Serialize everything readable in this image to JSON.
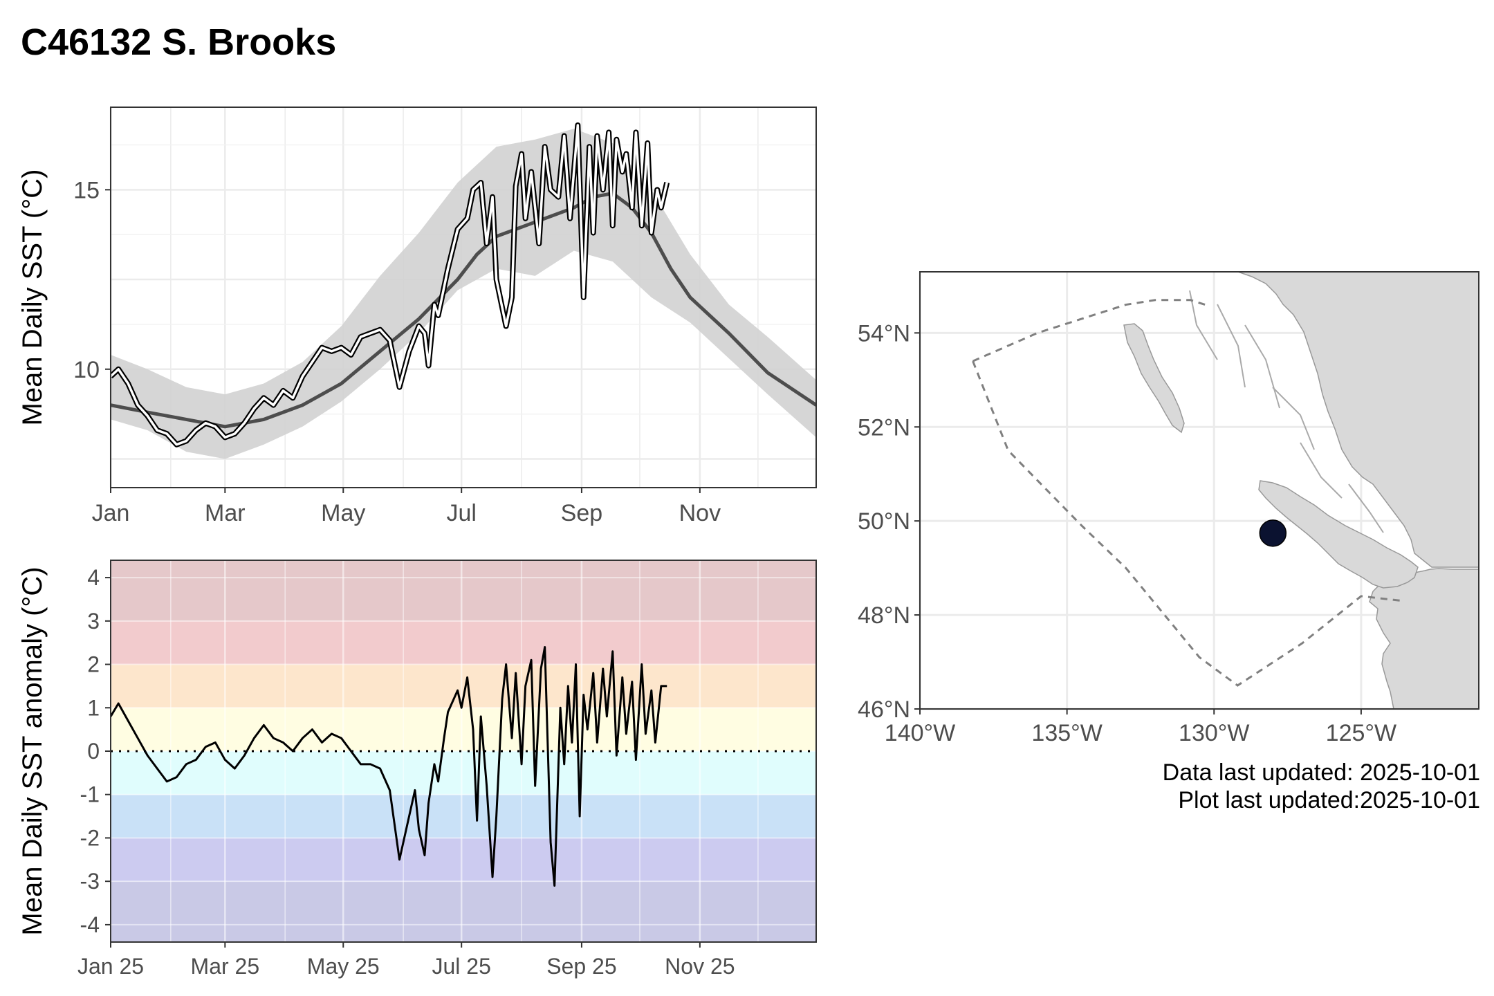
{
  "page": {
    "title": "C46132 S. Brooks",
    "data_updated": "Data last updated: 2025-10-01",
    "plot_updated": "Plot last updated:2025-10-01"
  },
  "colors": {
    "climatology_band": "#d2d2d2",
    "climatology_line": "#4d4d4d",
    "observed_outline": "#000000",
    "observed_inner": "#ffffff",
    "anomaly_line": "#000000",
    "land": "#d9d9d9",
    "station_marker": "#0b1230",
    "boundary": "#808080",
    "anomaly_bands": [
      "#c9c9e6",
      "#cccbf0",
      "#c9e1f7",
      "#e0fdfd",
      "#fffde2",
      "#fde6cc",
      "#f2cbcd",
      "#e5c8ca"
    ]
  },
  "chart_data": [
    {
      "type": "line",
      "ylabel": "Mean Daily SST (°C)",
      "xlabel": "",
      "xticks": [
        "Jan",
        "Mar",
        "May",
        "Jul",
        "Sep",
        "Nov"
      ],
      "yticks": [
        "10",
        "15"
      ],
      "ylim": [
        6.7,
        17.3
      ],
      "xlim_days": [
        1,
        365
      ],
      "grid": true,
      "series": [
        {
          "role": "climatology_range",
          "x_days": [
            1,
            20,
            40,
            60,
            80,
            100,
            120,
            140,
            160,
            180,
            200,
            220,
            240,
            260,
            280,
            300,
            320,
            340,
            365
          ],
          "lower": [
            8.6,
            8.3,
            7.7,
            7.5,
            7.9,
            8.4,
            9.1,
            10.0,
            11.0,
            12.2,
            12.8,
            12.6,
            13.3,
            13.0,
            12.0,
            11.3,
            10.3,
            9.3,
            8.1
          ],
          "upper": [
            10.4,
            10.0,
            9.5,
            9.3,
            9.6,
            10.2,
            11.2,
            12.6,
            13.8,
            15.2,
            16.2,
            16.4,
            16.7,
            16.3,
            15.0,
            13.2,
            11.8,
            10.9,
            9.7
          ]
        },
        {
          "role": "climatology_mean",
          "x_days": [
            1,
            20,
            40,
            60,
            80,
            100,
            120,
            140,
            160,
            180,
            190,
            200,
            210,
            220,
            230,
            240,
            250,
            260,
            270,
            280,
            290,
            300,
            320,
            340,
            365
          ],
          "y": [
            9.0,
            8.8,
            8.6,
            8.4,
            8.6,
            9.0,
            9.6,
            10.5,
            11.4,
            12.5,
            13.2,
            13.7,
            13.9,
            14.1,
            14.3,
            14.5,
            14.8,
            14.9,
            14.5,
            13.8,
            12.8,
            12.0,
            11.0,
            9.9,
            9.0
          ]
        },
        {
          "role": "observed_2025",
          "x_days": [
            1,
            5,
            10,
            15,
            20,
            25,
            30,
            35,
            40,
            45,
            50,
            55,
            60,
            65,
            70,
            75,
            80,
            85,
            90,
            95,
            100,
            105,
            110,
            115,
            120,
            125,
            130,
            135,
            140,
            145,
            150,
            155,
            160,
            163,
            165,
            168,
            170,
            175,
            180,
            185,
            188,
            192,
            195,
            198,
            200,
            205,
            208,
            210,
            213,
            215,
            218,
            222,
            225,
            228,
            232,
            235,
            238,
            242,
            245,
            248,
            250,
            252,
            255,
            258,
            260,
            262,
            265,
            267,
            270,
            272,
            275,
            278,
            280,
            283,
            285,
            288
          ],
          "y": [
            9.8,
            10.0,
            9.6,
            9.0,
            8.7,
            8.3,
            8.2,
            7.9,
            8.0,
            8.3,
            8.5,
            8.4,
            8.1,
            8.2,
            8.5,
            8.9,
            9.2,
            9.0,
            9.4,
            9.2,
            9.8,
            10.2,
            10.6,
            10.5,
            10.6,
            10.4,
            10.9,
            11.0,
            11.1,
            10.8,
            9.5,
            10.5,
            11.2,
            11.0,
            10.1,
            11.8,
            11.5,
            12.8,
            13.9,
            14.2,
            15.0,
            15.2,
            13.5,
            14.8,
            12.5,
            11.2,
            12.0,
            15.1,
            16.0,
            14.2,
            15.5,
            13.5,
            16.2,
            15.0,
            14.8,
            16.5,
            14.2,
            16.8,
            12.0,
            16.2,
            13.8,
            16.5,
            15.0,
            16.6,
            14.0,
            16.4,
            15.5,
            16.0,
            14.5,
            16.6,
            14.0,
            16.3,
            13.8,
            15.0,
            14.5,
            15.2
          ]
        }
      ]
    },
    {
      "type": "line",
      "ylabel": "Mean Daily SST anomaly (°C)",
      "xlabel": "",
      "xticks": [
        "Jan 25",
        "Mar 25",
        "May 25",
        "Jul 25",
        "Sep 25",
        "Nov 25"
      ],
      "yticks": [
        "4",
        "3",
        "2",
        "1",
        "0",
        "-1",
        "-2",
        "-3",
        "-4"
      ],
      "ylim": [
        -4.4,
        4.4
      ],
      "xlim_days": [
        1,
        365
      ],
      "grid": true,
      "series": [
        {
          "role": "anomaly_2025",
          "x_days": [
            1,
            5,
            10,
            15,
            20,
            25,
            30,
            35,
            40,
            45,
            50,
            55,
            60,
            65,
            70,
            75,
            80,
            85,
            90,
            95,
            100,
            105,
            110,
            115,
            120,
            125,
            130,
            135,
            140,
            145,
            150,
            155,
            158,
            160,
            163,
            165,
            168,
            170,
            173,
            175,
            180,
            182,
            185,
            188,
            190,
            192,
            195,
            198,
            200,
            203,
            205,
            208,
            210,
            213,
            215,
            218,
            220,
            223,
            225,
            228,
            230,
            233,
            235,
            237,
            239,
            241,
            243,
            245,
            247,
            250,
            252,
            255,
            257,
            260,
            262,
            265,
            267,
            270,
            272,
            275,
            277,
            280,
            282,
            285,
            288
          ],
          "y": [
            0.8,
            1.1,
            0.7,
            0.3,
            -0.1,
            -0.4,
            -0.7,
            -0.6,
            -0.3,
            -0.2,
            0.1,
            0.2,
            -0.2,
            -0.4,
            -0.1,
            0.3,
            0.6,
            0.3,
            0.2,
            0.0,
            0.3,
            0.5,
            0.2,
            0.4,
            0.3,
            0.0,
            -0.3,
            -0.3,
            -0.4,
            -0.9,
            -2.5,
            -1.5,
            -0.9,
            -1.8,
            -2.4,
            -1.2,
            -0.3,
            -0.7,
            0.3,
            0.9,
            1.4,
            1.0,
            1.7,
            0.5,
            -1.6,
            0.8,
            -0.8,
            -2.9,
            -1.5,
            1.2,
            2.0,
            0.3,
            1.8,
            -0.3,
            1.5,
            2.1,
            -0.8,
            1.9,
            2.4,
            -2.1,
            -3.1,
            1.0,
            -0.3,
            1.5,
            0.2,
            2.0,
            -1.5,
            1.3,
            0.5,
            1.8,
            0.2,
            1.9,
            0.8,
            2.3,
            -0.1,
            1.7,
            0.4,
            1.6,
            -0.2,
            2.0,
            0.4,
            1.4,
            0.2,
            1.5,
            1.5
          ]
        }
      ],
      "bands": [
        {
          "from": -4.4,
          "to": -3
        },
        {
          "from": -3,
          "to": -2
        },
        {
          "from": -2,
          "to": -1
        },
        {
          "from": -1,
          "to": 0
        },
        {
          "from": 0,
          "to": 1
        },
        {
          "from": 1,
          "to": 2
        },
        {
          "from": 2,
          "to": 3
        },
        {
          "from": 3,
          "to": 4.4
        }
      ]
    },
    {
      "type": "map",
      "xticks": [
        "140°W",
        "135°W",
        "130°W",
        "125°W"
      ],
      "yticks": [
        "54°N",
        "52°N",
        "50°N",
        "48°N",
        "46°N"
      ],
      "lon_range": [
        -140,
        -121
      ],
      "lat_range": [
        46,
        55.3
      ],
      "station": {
        "lon": -128.0,
        "lat": 49.74
      },
      "boundary_path": [
        [
          -138.2,
          53.4
        ],
        [
          -136.0,
          54.0
        ],
        [
          -133.0,
          54.6
        ],
        [
          -132.0,
          54.7
        ],
        [
          -130.8,
          54.7
        ],
        [
          -130.3,
          54.6
        ]
      ],
      "boundary_path2": [
        [
          -138.2,
          53.4
        ],
        [
          -137.0,
          51.5
        ],
        [
          -134.5,
          49.9
        ],
        [
          -133.0,
          49.0
        ],
        [
          -130.5,
          47.1
        ],
        [
          -129.2,
          46.5
        ],
        [
          -127.0,
          47.4
        ],
        [
          -125.0,
          48.4
        ],
        [
          -123.6,
          48.3
        ]
      ]
    }
  ]
}
